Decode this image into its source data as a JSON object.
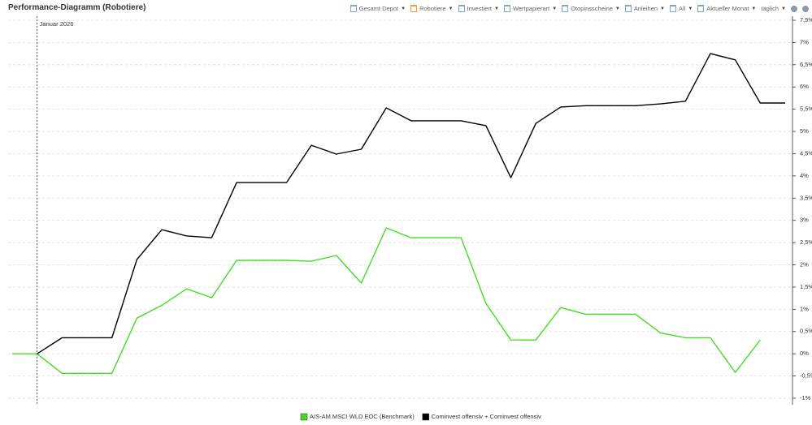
{
  "chart_data": {
    "type": "line",
    "title": "Performance-Diagramm (Robotiere)",
    "categories": [
      null,
      "Januar 2026",
      null,
      null,
      null,
      null,
      null,
      null,
      null,
      null,
      null,
      null,
      null,
      null,
      null,
      null,
      null,
      null,
      null,
      null,
      null,
      null,
      null,
      null,
      null,
      null,
      null,
      null,
      null,
      null,
      null,
      null
    ],
    "series": [
      {
        "name": "AIS-AM.MSCI WLD EOC (Benchmark)",
        "color": "#44dd22",
        "values": [
          0,
          0,
          -0.44,
          -0.44,
          -0.44,
          0.8,
          1.09,
          1.46,
          1.26,
          2.1,
          2.1,
          2.1,
          2.08,
          2.21,
          1.59,
          2.83,
          2.61,
          2.61,
          2.61,
          1.13,
          0.31,
          0.31,
          1.04,
          0.89,
          0.89,
          0.89,
          0.47,
          0.36,
          0.36,
          -0.42,
          0.31,
          null
        ]
      },
      {
        "name": "Cominvest offensiv + Cominvest offensiv",
        "color": "#000000",
        "values": [
          null,
          0,
          0.36,
          0.36,
          0.36,
          2.12,
          2.79,
          2.65,
          2.61,
          3.85,
          3.85,
          3.85,
          4.69,
          4.49,
          4.6,
          5.53,
          5.24,
          5.24,
          5.24,
          5.13,
          3.96,
          5.18,
          5.55,
          5.58,
          5.58,
          5.58,
          5.62,
          5.68,
          6.75,
          6.61,
          5.64,
          5.64
        ]
      }
    ],
    "ylim": [
      -1,
      7.5
    ],
    "yticks": [
      {
        "value": -1,
        "label": "-1%"
      },
      {
        "value": -0.5,
        "label": "-0,5%"
      },
      {
        "value": 0,
        "label": "0%"
      },
      {
        "value": 0.5,
        "label": "0,5%"
      },
      {
        "value": 1,
        "label": "1%"
      },
      {
        "value": 1.5,
        "label": "1,5%"
      },
      {
        "value": 2,
        "label": "2%"
      },
      {
        "value": 2.5,
        "label": "2,5%"
      },
      {
        "value": 3,
        "label": "3%"
      },
      {
        "value": 3.5,
        "label": "3,5%"
      },
      {
        "value": 4,
        "label": "4%"
      },
      {
        "value": 4.5,
        "label": "4,5%"
      },
      {
        "value": 5,
        "label": "5%"
      },
      {
        "value": 5.5,
        "label": "5,5%"
      },
      {
        "value": 6,
        "label": "6%"
      },
      {
        "value": 6.5,
        "label": "6,5%"
      },
      {
        "value": 7,
        "label": "7%"
      },
      {
        "value": 7.5,
        "label": "7,5%"
      }
    ],
    "grid": true,
    "legend": "bottom"
  },
  "toolbar": [
    "Gesamt Depot",
    "Robotiere",
    "Investiert",
    "Wertpapierart",
    "Otopinsscheine",
    "Anleihen",
    "All",
    "Aktueller Monat",
    "täglich"
  ]
}
